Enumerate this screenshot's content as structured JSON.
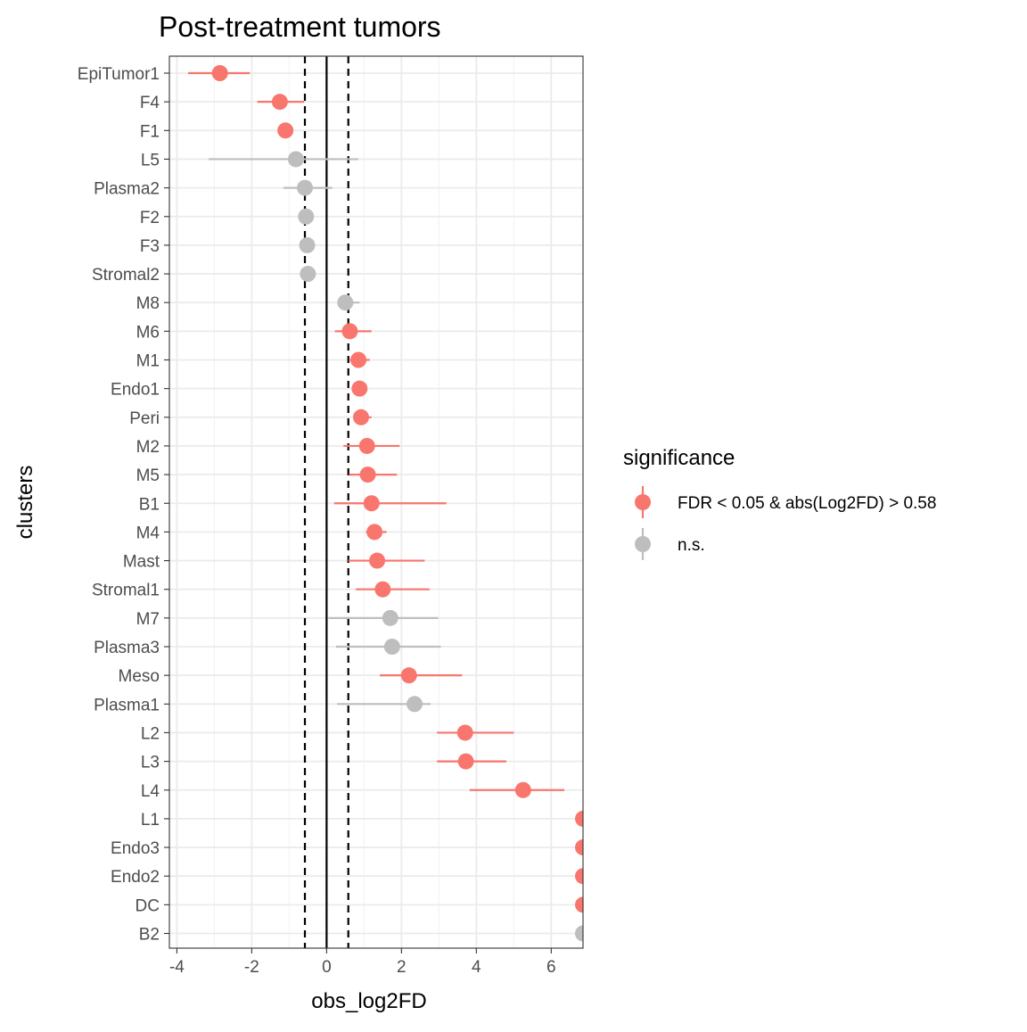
{
  "chart_data": {
    "type": "scatter",
    "title": "Post-treatment tumors",
    "xlabel": "obs_log2FD",
    "ylabel": "clusters",
    "xlim": [
      -4.2,
      6.85
    ],
    "x_ticks": [
      -4,
      -2,
      0,
      2,
      4,
      6
    ],
    "x_tick_labels": [
      "-4",
      "-2",
      "0",
      "2",
      "4",
      "6"
    ],
    "grid": true,
    "vlines": [
      {
        "x": 0,
        "style": "solid"
      },
      {
        "x": -0.58,
        "style": "dashed"
      },
      {
        "x": 0.58,
        "style": "dashed"
      }
    ],
    "legend": {
      "title": "significance",
      "placement": "right",
      "entries": [
        {
          "key": "sig",
          "label": "FDR < 0.05 & abs(Log2FD) > 0.58",
          "color": "#F8766D"
        },
        {
          "key": "ns",
          "label": "n.s.",
          "color": "#BEBEBE"
        }
      ]
    },
    "colors": {
      "sig": "#F8766D",
      "ns": "#BEBEBE"
    },
    "points": [
      {
        "cluster": "EpiTumor1",
        "x": -2.85,
        "lo": -3.7,
        "hi": -2.05,
        "sig": "sig"
      },
      {
        "cluster": "F4",
        "x": -1.25,
        "lo": -1.85,
        "hi": -0.6,
        "sig": "sig"
      },
      {
        "cluster": "F1",
        "x": -1.1,
        "lo": -1.1,
        "hi": -1.1,
        "sig": "sig"
      },
      {
        "cluster": "L5",
        "x": -0.82,
        "lo": -3.15,
        "hi": 0.85,
        "sig": "ns"
      },
      {
        "cluster": "Plasma2",
        "x": -0.58,
        "lo": -1.15,
        "hi": 0.15,
        "sig": "ns"
      },
      {
        "cluster": "F2",
        "x": -0.55,
        "lo": -0.55,
        "hi": -0.55,
        "sig": "ns"
      },
      {
        "cluster": "F3",
        "x": -0.52,
        "lo": -0.52,
        "hi": -0.52,
        "sig": "ns"
      },
      {
        "cluster": "Stromal2",
        "x": -0.5,
        "lo": -0.5,
        "hi": -0.5,
        "sig": "ns"
      },
      {
        "cluster": "M8",
        "x": 0.5,
        "lo": 0.3,
        "hi": 0.88,
        "sig": "ns"
      },
      {
        "cluster": "M6",
        "x": 0.62,
        "lo": 0.22,
        "hi": 1.2,
        "sig": "sig"
      },
      {
        "cluster": "M1",
        "x": 0.85,
        "lo": 0.62,
        "hi": 1.15,
        "sig": "sig"
      },
      {
        "cluster": "Endo1",
        "x": 0.88,
        "lo": 0.88,
        "hi": 0.88,
        "sig": "sig"
      },
      {
        "cluster": "Peri",
        "x": 0.92,
        "lo": 0.72,
        "hi": 1.2,
        "sig": "sig"
      },
      {
        "cluster": "M2",
        "x": 1.08,
        "lo": 0.45,
        "hi": 1.95,
        "sig": "sig"
      },
      {
        "cluster": "M5",
        "x": 1.1,
        "lo": 0.6,
        "hi": 1.88,
        "sig": "sig"
      },
      {
        "cluster": "B1",
        "x": 1.2,
        "lo": 0.2,
        "hi": 3.2,
        "sig": "sig"
      },
      {
        "cluster": "M4",
        "x": 1.28,
        "lo": 1.05,
        "hi": 1.6,
        "sig": "sig"
      },
      {
        "cluster": "Mast",
        "x": 1.35,
        "lo": 0.58,
        "hi": 2.62,
        "sig": "sig"
      },
      {
        "cluster": "Stromal1",
        "x": 1.5,
        "lo": 0.78,
        "hi": 2.75,
        "sig": "sig"
      },
      {
        "cluster": "M7",
        "x": 1.7,
        "lo": 0.05,
        "hi": 2.98,
        "sig": "ns"
      },
      {
        "cluster": "Plasma3",
        "x": 1.75,
        "lo": 0.25,
        "hi": 3.05,
        "sig": "ns"
      },
      {
        "cluster": "Meso",
        "x": 2.2,
        "lo": 1.42,
        "hi": 3.62,
        "sig": "sig"
      },
      {
        "cluster": "Plasma1",
        "x": 2.35,
        "lo": 0.28,
        "hi": 2.78,
        "sig": "ns"
      },
      {
        "cluster": "L2",
        "x": 3.7,
        "lo": 2.95,
        "hi": 5.0,
        "sig": "sig"
      },
      {
        "cluster": "L3",
        "x": 3.72,
        "lo": 2.95,
        "hi": 4.8,
        "sig": "sig"
      },
      {
        "cluster": "L4",
        "x": 5.25,
        "lo": 3.82,
        "hi": 6.35,
        "sig": "sig"
      },
      {
        "cluster": "L1",
        "x": 6.85,
        "lo": 6.85,
        "hi": 6.85,
        "sig": "sig"
      },
      {
        "cluster": "Endo3",
        "x": 6.85,
        "lo": 6.85,
        "hi": 6.85,
        "sig": "sig"
      },
      {
        "cluster": "Endo2",
        "x": 6.85,
        "lo": 6.85,
        "hi": 6.85,
        "sig": "sig"
      },
      {
        "cluster": "DC",
        "x": 6.85,
        "lo": 6.85,
        "hi": 6.85,
        "sig": "sig"
      },
      {
        "cluster": "B2",
        "x": 6.85,
        "lo": 6.85,
        "hi": 6.85,
        "sig": "ns"
      }
    ]
  }
}
